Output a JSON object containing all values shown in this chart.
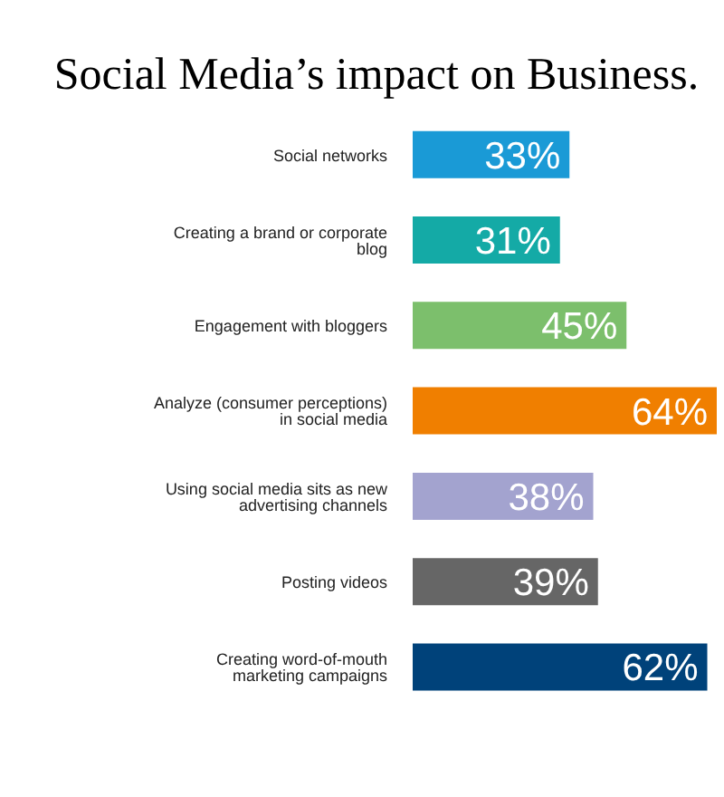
{
  "chart_data": {
    "type": "bar",
    "orientation": "horizontal",
    "title": "Social Media’s impact on Business.",
    "categories": [
      "Social networks",
      "Creating a brand or corporate blog",
      "Engagement with bloggers",
      "Analyze (consumer perceptions) in social media",
      "Using social media sits as new advertising channels",
      "Posting videos",
      "Creating word-of-mouth marketing campaigns"
    ],
    "values": [
      33,
      31,
      45,
      64,
      38,
      39,
      62
    ],
    "colors": [
      "#1a9ad6",
      "#14aaa6",
      "#7cbf6c",
      "#f07f00",
      "#a3a3cf",
      "#666666",
      "#00427a"
    ],
    "value_labels": [
      "33%",
      "31%",
      "45%",
      "64%",
      "38%",
      "39%",
      "62%"
    ]
  }
}
